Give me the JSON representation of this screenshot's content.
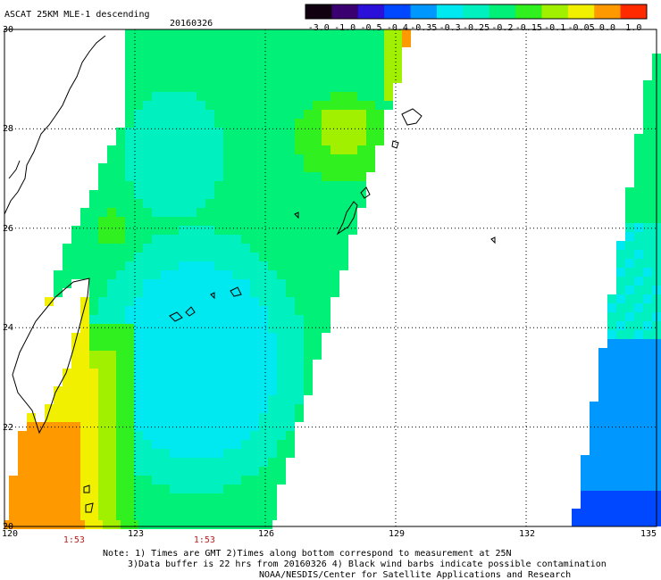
{
  "header": {
    "product": "ASCAT 25KM MLE-1 descending",
    "date": "20160326"
  },
  "colorbar": {
    "labels": [
      "-3.0",
      "-1.0",
      "-0.5",
      "-0.4",
      "-0.35",
      "-0.3",
      "-0.25",
      "-0.2",
      "-0.15",
      "-0.1",
      "-0.05",
      "0.0",
      "1.0"
    ],
    "colors": [
      "#100010",
      "#3a0070",
      "#2a10d8",
      "#0048ff",
      "#0098ff",
      "#00e8f0",
      "#00f0c0",
      "#00f078",
      "#30f020",
      "#a0f000",
      "#f0f000",
      "#ff9900",
      "#ff2a00"
    ]
  },
  "axes": {
    "lon_labels": [
      "120",
      "123",
      "126",
      "129",
      "132",
      "135"
    ],
    "lat_labels": [
      "20",
      "22",
      "24",
      "26",
      "28",
      "30"
    ],
    "lon_range": [
      120,
      135
    ],
    "lat_range": [
      20,
      30
    ]
  },
  "time_labels": [
    {
      "text": "1:53",
      "lon": 121.6
    },
    {
      "text": "1:53",
      "lon": 124.6
    }
  ],
  "notes": {
    "line1": "Note: 1) Times are GMT 2)Times along bottom correspond to measurement at 25N",
    "line2": "3)Data buffer is 22 hrs from 20160326 4) Black wind barbs indicate possible contamination",
    "line3": "NOAA/NESDIS/Center for Satellite Applications and Research"
  }
}
